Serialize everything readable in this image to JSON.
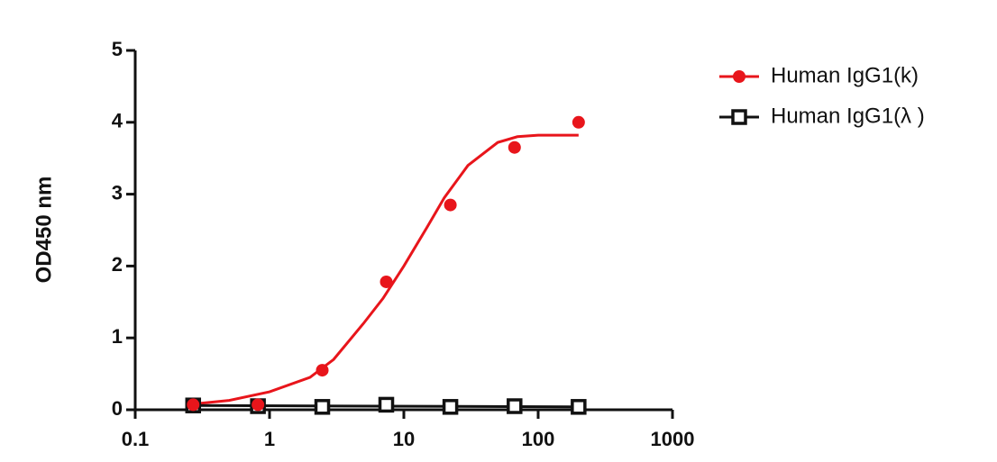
{
  "chart_data": {
    "type": "scatter",
    "y_label": "OD450 nm",
    "xscale": "log",
    "xlim": [
      0.1,
      1000
    ],
    "xticks": [
      0.1,
      1,
      10,
      100,
      1000
    ],
    "ylim": [
      0,
      5
    ],
    "yticks": [
      0,
      1,
      2,
      3,
      4,
      5
    ],
    "legend": "top-right",
    "series": [
      {
        "name": "Human IgG1(k)",
        "color": "#e8151b",
        "marker": "circle",
        "x": [
          0.27,
          0.82,
          2.47,
          7.4,
          22.2,
          66.7,
          200
        ],
        "values": [
          0.07,
          0.07,
          0.55,
          1.78,
          2.85,
          3.65,
          4.0
        ],
        "curve": {
          "x": [
            0.27,
            0.5,
            1,
            2,
            3,
            5,
            7,
            10,
            15,
            20,
            30,
            50,
            70,
            100,
            200
          ],
          "y": [
            0.08,
            0.13,
            0.25,
            0.45,
            0.7,
            1.2,
            1.55,
            2.0,
            2.55,
            2.95,
            3.4,
            3.72,
            3.8,
            3.82,
            3.82
          ]
        }
      },
      {
        "name": "Human IgG1(λ )",
        "color": "#111111",
        "marker": "square",
        "x": [
          0.27,
          0.82,
          2.47,
          7.4,
          22.2,
          66.7,
          200
        ],
        "values": [
          0.06,
          0.05,
          0.04,
          0.07,
          0.04,
          0.05,
          0.04
        ],
        "curve": {
          "x": [
            0.27,
            200
          ],
          "y": [
            0.06,
            0.04
          ]
        }
      }
    ]
  }
}
